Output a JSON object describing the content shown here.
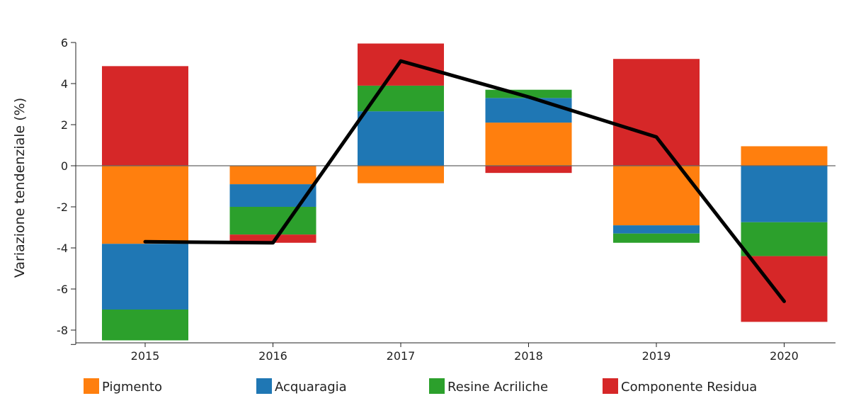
{
  "chart_data": {
    "type": "bar",
    "stacked": true,
    "title": "",
    "xlabel": "",
    "ylabel": "Variazione tendenziale (%)",
    "ylim": [
      -8.7,
      6
    ],
    "yticks": [
      6,
      4,
      2,
      0,
      -2,
      -4,
      -6,
      -8
    ],
    "ytick_labels": [
      "6",
      "4",
      "2",
      "0",
      "-2",
      "-4",
      "-6",
      "-8"
    ],
    "categories": [
      "2015",
      "2016",
      "2017",
      "2018",
      "2019",
      "2020"
    ],
    "series": [
      {
        "name": "Pigmento",
        "color": "#ff7f0e",
        "values": [
          -3.8,
          -0.9,
          -0.85,
          2.1,
          -2.9,
          0.95
        ]
      },
      {
        "name": "Acquaragia",
        "color": "#1f77b4",
        "values": [
          -3.2,
          -1.1,
          2.65,
          1.2,
          -0.4,
          -2.75
        ]
      },
      {
        "name": "Resine Acriliche",
        "color": "#2ca02c",
        "values": [
          -1.5,
          -1.35,
          1.25,
          0.4,
          -0.45,
          -1.65
        ]
      },
      {
        "name": "Componente Residua",
        "color": "#d62728",
        "values": [
          4.85,
          -0.4,
          2.05,
          -0.35,
          5.2,
          -3.2
        ]
      }
    ],
    "line": {
      "color": "#000000",
      "values": [
        -3.7,
        -3.75,
        5.1,
        3.35,
        1.4,
        -6.6
      ]
    },
    "legend": {
      "position": "bottom",
      "labels": [
        "Pigmento",
        "Acquaragia",
        "Resine Acriliche",
        "Componente Residua"
      ]
    }
  }
}
